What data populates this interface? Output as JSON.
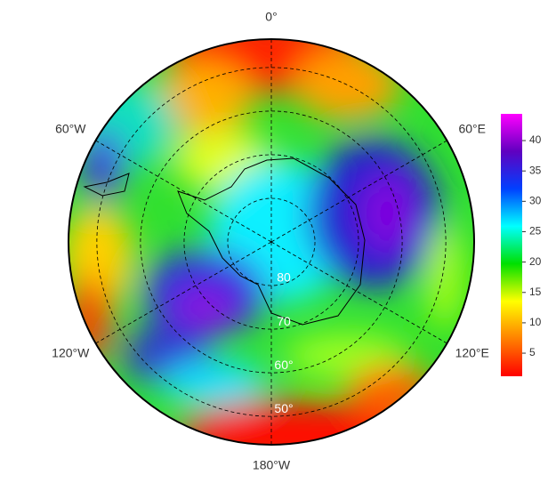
{
  "chart_data": {
    "type": "polar-map",
    "rlim": [
      -90,
      -43.5
    ],
    "lat_rings": [
      {
        "value": -80,
        "label": "80"
      },
      {
        "value": -70,
        "label": "70"
      },
      {
        "value": -60,
        "label": "60°"
      },
      {
        "value": -50,
        "label": "50°"
      }
    ],
    "lon_lines": [
      {
        "value": 0,
        "label": "0°"
      },
      {
        "value": 60,
        "label": "60°E"
      },
      {
        "value": 120,
        "label": "120°E"
      },
      {
        "value": 180,
        "label": "180°W"
      },
      {
        "value": -120,
        "label": "120°W"
      },
      {
        "value": -60,
        "label": "60°W"
      }
    ],
    "colorbar": {
      "lim": [
        1.2,
        44.4
      ],
      "ticks": [
        5,
        10,
        15,
        20,
        25,
        30,
        35,
        40
      ],
      "colormap": [
        "#ff0000",
        "#ff8000",
        "#ffff00",
        "#00e000",
        "#00ffff",
        "#0040ff",
        "#6000c0",
        "#ff00ff"
      ]
    }
  }
}
